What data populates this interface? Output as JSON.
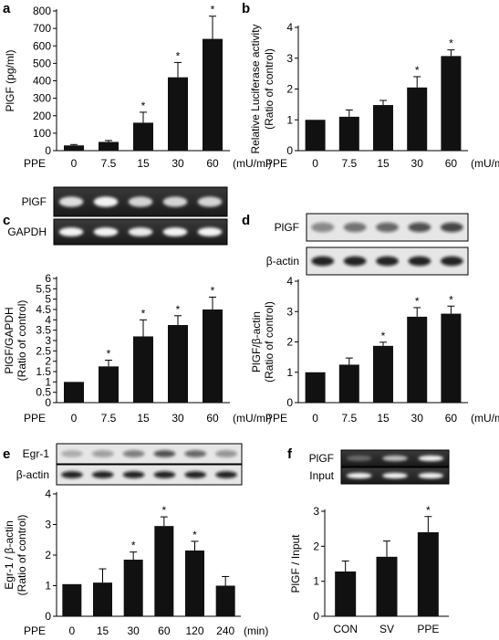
{
  "chart_data": [
    {
      "panel": "a",
      "type": "bar",
      "title": "",
      "ylabel": "PlGF (pg/ml)",
      "xlabel_prefix": "PPE",
      "xunit": "(mU/ml)",
      "categories": [
        "0",
        "7.5",
        "15",
        "30",
        "60"
      ],
      "values": [
        30,
        50,
        160,
        420,
        640
      ],
      "errors": [
        5,
        8,
        60,
        85,
        130
      ],
      "significant": [
        false,
        false,
        true,
        true,
        true
      ],
      "ylim": [
        0,
        800
      ],
      "yticks": [
        "0",
        "100",
        "200",
        "300",
        "400",
        "500",
        "600",
        "700",
        "800"
      ]
    },
    {
      "panel": "b",
      "type": "bar",
      "title": "",
      "ylabel": "Relative Luciferase activity",
      "ylabel2": "(Ratio of control)",
      "xlabel_prefix": "PPE",
      "xunit": "(mU/ml)",
      "categories": [
        "0",
        "7.5",
        "15",
        "30",
        "60"
      ],
      "values": [
        1.0,
        1.1,
        1.48,
        2.05,
        3.07
      ],
      "errors": [
        0.0,
        0.22,
        0.15,
        0.35,
        0.2
      ],
      "significant": [
        false,
        false,
        false,
        true,
        true
      ],
      "ylim": [
        0,
        4
      ],
      "yticks": [
        "0",
        "1",
        "2",
        "3",
        "4"
      ]
    },
    {
      "panel": "c",
      "type": "bar",
      "title": "",
      "ylabel": "PlGF/GAPDH",
      "ylabel2": "(Ratio of control)",
      "xlabel_prefix": "PPE",
      "xunit": "(mU/ml)",
      "categories": [
        "0",
        "7.5",
        "15",
        "30",
        "60"
      ],
      "values": [
        1.0,
        1.75,
        3.2,
        3.75,
        4.5
      ],
      "errors": [
        0.0,
        0.3,
        0.8,
        0.45,
        0.6
      ],
      "significant": [
        false,
        true,
        true,
        true,
        true
      ],
      "ylim": [
        0,
        6
      ],
      "yticks": [
        "0",
        "0.5",
        "1",
        "1.5",
        "2",
        "2.5",
        "3",
        "3.5",
        "4",
        "4.5",
        "5",
        "5.5",
        "6"
      ]
    },
    {
      "panel": "d",
      "type": "bar",
      "title": "",
      "ylabel": "PlGF/β-actin",
      "ylabel2": "(Ratio of control)",
      "xlabel_prefix": "PPE",
      "xunit": "(mU/ml)",
      "categories": [
        "0",
        "7.5",
        "15",
        "30",
        "60"
      ],
      "values": [
        1.0,
        1.25,
        1.87,
        2.83,
        2.93
      ],
      "errors": [
        0.0,
        0.22,
        0.12,
        0.3,
        0.25
      ],
      "significant": [
        false,
        false,
        true,
        true,
        true
      ],
      "ylim": [
        0,
        4
      ],
      "yticks": [
        "0",
        "1",
        "2",
        "3",
        "4"
      ]
    },
    {
      "panel": "e",
      "type": "bar",
      "title": "",
      "ylabel": "Egr-1 / β-actin",
      "ylabel2": "(Ratio of control)",
      "xlabel_prefix": "PPE",
      "xunit": "(min)",
      "categories": [
        "0",
        "15",
        "30",
        "60",
        "120",
        "240"
      ],
      "values": [
        1.05,
        1.1,
        1.85,
        2.95,
        2.15,
        1.0
      ],
      "errors": [
        0.0,
        0.45,
        0.25,
        0.3,
        0.3,
        0.3
      ],
      "significant": [
        false,
        false,
        true,
        true,
        true,
        false
      ],
      "ylim": [
        0,
        4
      ],
      "yticks": [
        "0",
        "1",
        "2",
        "3",
        "4"
      ]
    },
    {
      "panel": "f",
      "type": "bar",
      "title": "",
      "ylabel": "PlGF / Input",
      "categories": [
        "CON",
        "SV",
        "PPE"
      ],
      "values": [
        1.28,
        1.7,
        2.4
      ],
      "errors": [
        0.3,
        0.45,
        0.45
      ],
      "significant": [
        false,
        false,
        true
      ],
      "ylim": [
        0,
        3
      ],
      "yticks": [
        "0",
        "1",
        "2",
        "3"
      ]
    }
  ],
  "gels": {
    "c": {
      "rows": [
        "PlGF",
        "GAPDH"
      ]
    },
    "d": {
      "rows": [
        "PlGF",
        "β-actin"
      ]
    },
    "e": {
      "rows": [
        "Egr-1",
        "β-actin"
      ]
    },
    "f": {
      "rows": [
        "PlGF",
        "Input"
      ]
    }
  },
  "panel_letters": [
    "a",
    "b",
    "c",
    "d",
    "e",
    "f"
  ],
  "significance_mark": "*"
}
